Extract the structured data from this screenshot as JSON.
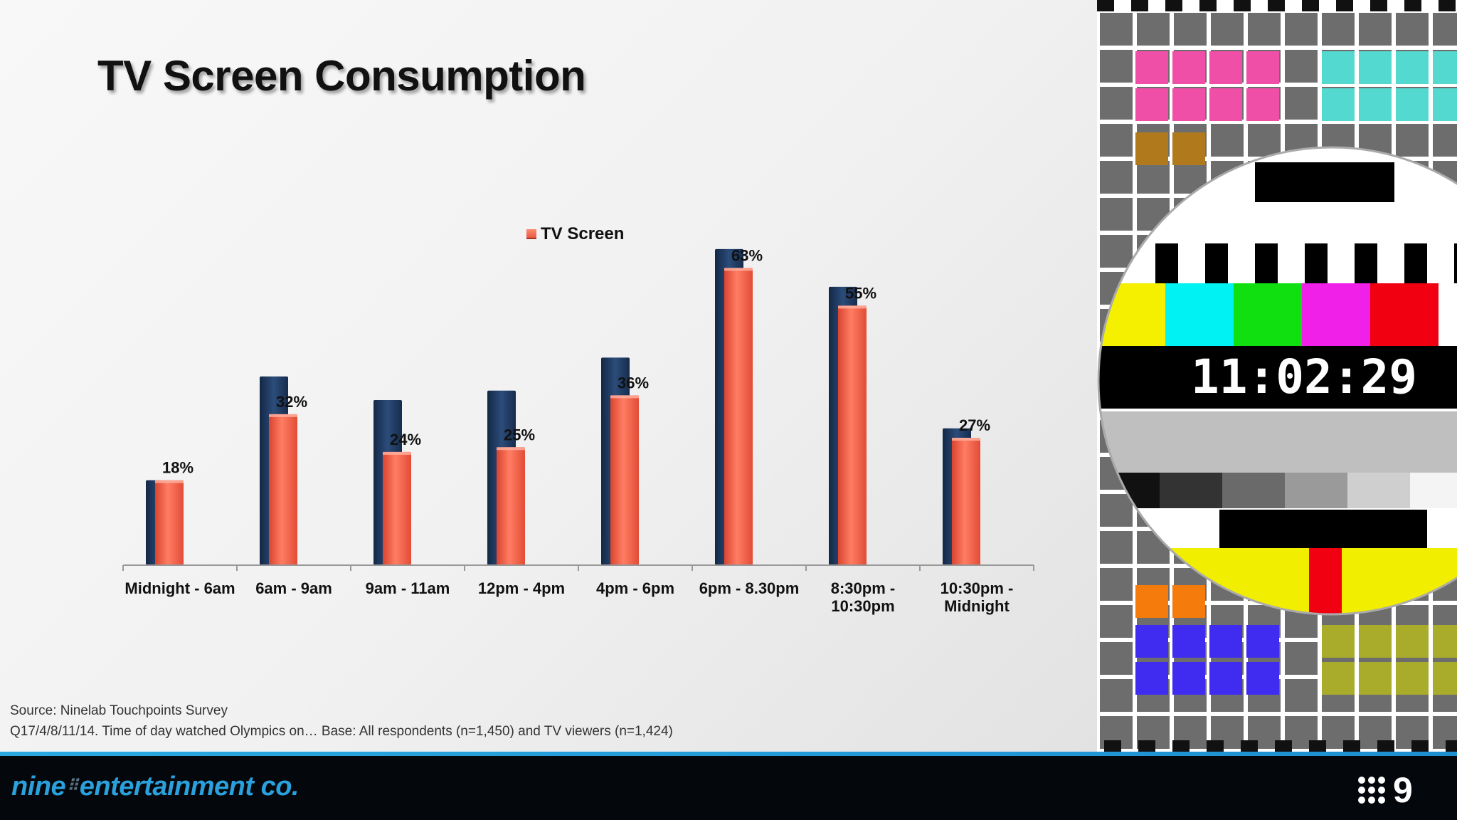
{
  "slide": {
    "title": "TV Screen Consumption",
    "source_line1": "Source: Ninelab Touchpoints Survey",
    "source_line2": "Q17/4/8/11/14. Time of day watched Olympics on… Base: All respondents (n=1,450) and TV viewers (n=1,424)"
  },
  "footer": {
    "company_logo_word1": "nine",
    "company_logo_word2": "entertainment co.",
    "network_logo": "9"
  },
  "testcard": {
    "clock": "11:02:29"
  },
  "chart_data": {
    "type": "bar",
    "title": "",
    "xlabel": "",
    "ylabel": "",
    "ylim": [
      0,
      70
    ],
    "legend": {
      "entries": [
        "TV Screen"
      ],
      "position": "top-center"
    },
    "categories": [
      [
        "Midnight - 6am"
      ],
      [
        "6am - 9am"
      ],
      [
        "9am - 11am"
      ],
      [
        "12pm - 4pm"
      ],
      [
        "4pm - 6pm"
      ],
      [
        "6pm - 8.30pm"
      ],
      [
        "8:30pm -",
        "10:30pm"
      ],
      [
        "10:30pm -",
        "Midnight"
      ]
    ],
    "series": [
      {
        "values": [
          18,
          40,
          35,
          37,
          44,
          67,
          59,
          29
        ],
        "color": "#1f3a63",
        "labels_shown": false
      },
      {
        "name": "TV Screen",
        "values": [
          18,
          32,
          24,
          25,
          36,
          63,
          55,
          27
        ],
        "labels": [
          "18%",
          "32%",
          "24%",
          "25%",
          "36%",
          "63%",
          "55%",
          "27%"
        ],
        "color": "#f26650"
      }
    ],
    "grid": false
  },
  "colors": {
    "series_back": "#1f3a63",
    "series_front": "#f26650",
    "accent_blue": "#2aa1dc",
    "footer_bg": "#04070b"
  }
}
